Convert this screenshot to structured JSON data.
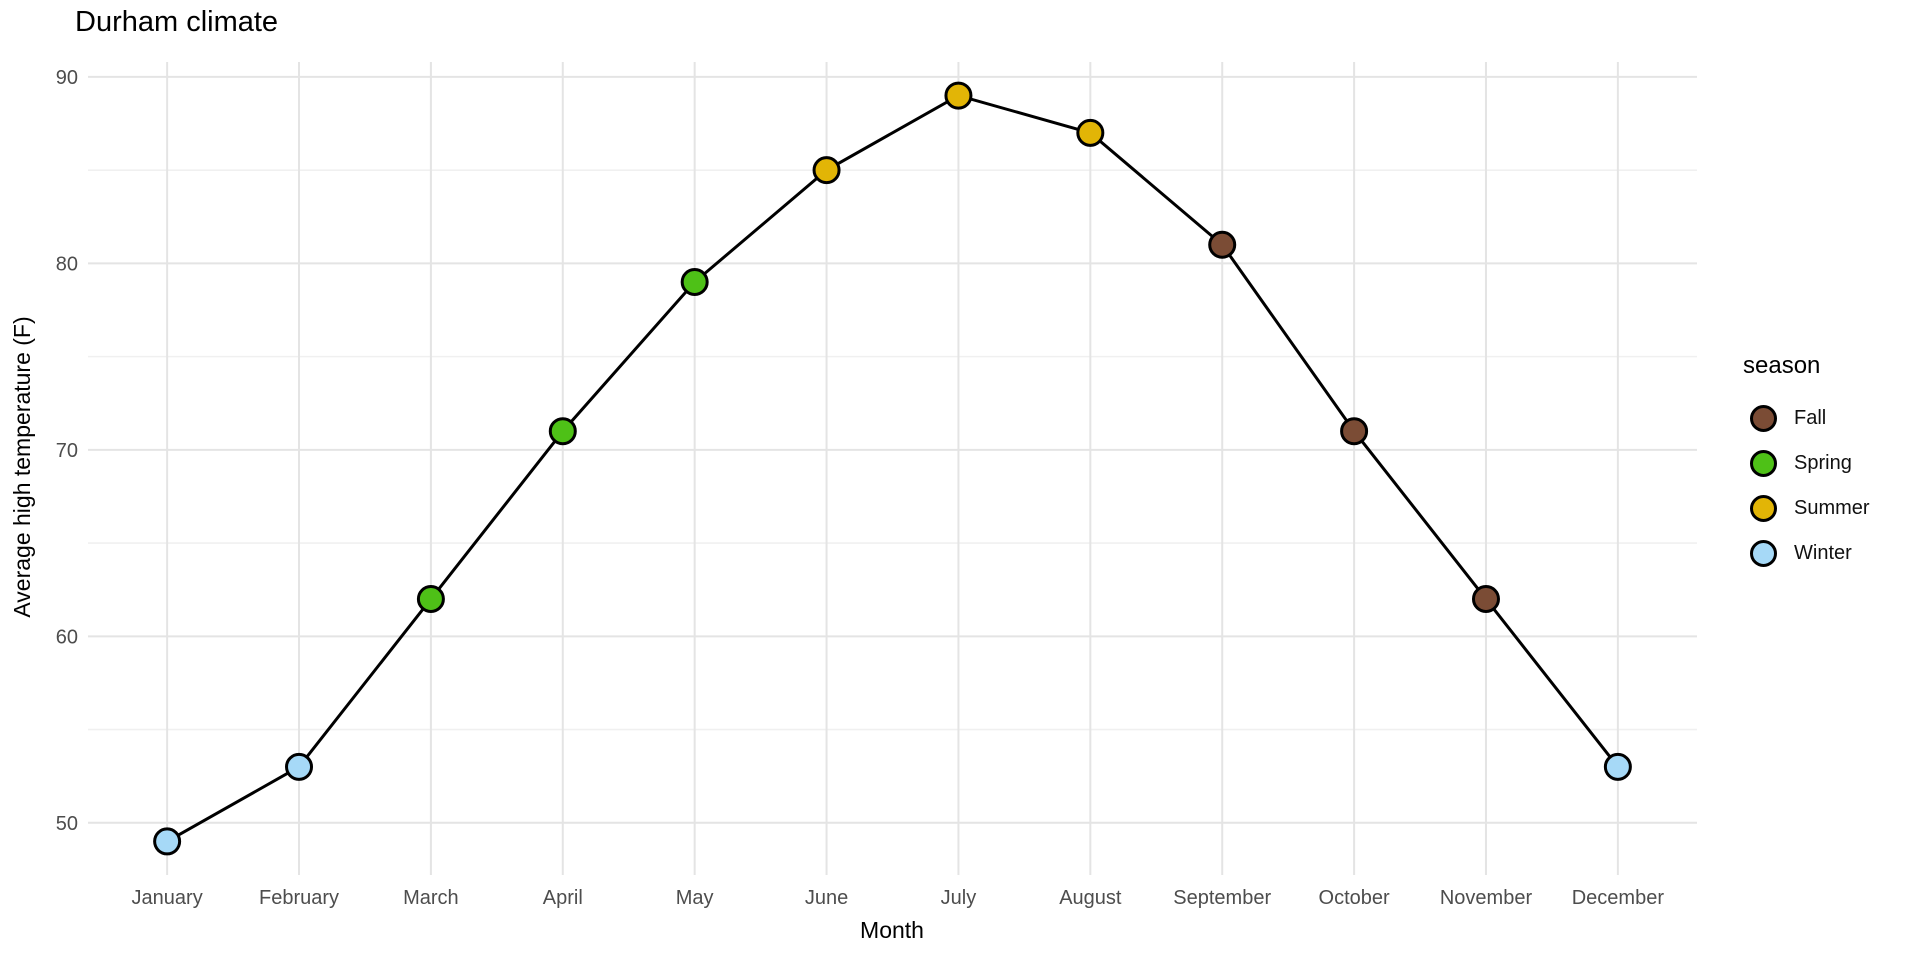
{
  "title": "Durham climate",
  "chart_data": {
    "type": "line",
    "title": "Durham climate",
    "xlabel": "Month",
    "ylabel": "Average high temperature (F)",
    "categories": [
      "January",
      "February",
      "March",
      "April",
      "May",
      "June",
      "July",
      "August",
      "September",
      "October",
      "November",
      "December"
    ],
    "values": [
      49,
      53,
      62,
      71,
      79,
      85,
      89,
      87,
      81,
      71,
      62,
      53
    ],
    "point_seasons": [
      "Winter",
      "Winter",
      "Spring",
      "Spring",
      "Spring",
      "Summer",
      "Summer",
      "Summer",
      "Fall",
      "Fall",
      "Fall",
      "Winter"
    ],
    "y_ticks": [
      50,
      60,
      70,
      80,
      90
    ],
    "y_minor_ticks": [
      55,
      65,
      75,
      85
    ],
    "y_range": [
      47.2,
      90.8
    ],
    "grid": true,
    "legend_position": "right",
    "legend": {
      "title": "season",
      "entries": [
        {
          "label": "Fall",
          "color": "#7B4C35"
        },
        {
          "label": "Spring",
          "color": "#4EC117"
        },
        {
          "label": "Summer",
          "color": "#E2B506"
        },
        {
          "label": "Winter",
          "color": "#A6D9F7"
        }
      ]
    },
    "line_color": "#000000",
    "point_outline": "#000000"
  },
  "colors": {
    "background": "#FFFFFF",
    "grid_major": "#E4E4E4",
    "grid_minor": "#F0F0F0",
    "tick_text": "#4D4D4D",
    "title_text": "#000000"
  }
}
